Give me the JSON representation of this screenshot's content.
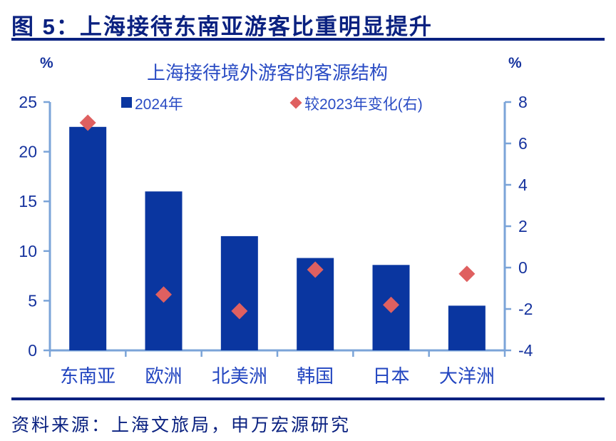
{
  "header": {
    "title": "图 5：上海接待东南亚游客比重明显提升"
  },
  "source": {
    "text": "资料来源：上海文旅局，申万宏源研究"
  },
  "colors": {
    "header_navy": "#0A2180",
    "bar_blue": "#0A36A0",
    "marker_red": "#DF6060",
    "axis_light_blue": "#7BA4D8",
    "tick_label_blue": "#16339E",
    "category_label_blue": "#2245C0",
    "chart_text_blue": "#2A4CC4"
  },
  "chart_data": {
    "type": "bar",
    "title": "上海接待境外游客的客源结构",
    "categories": [
      "东南亚",
      "欧洲",
      "北美洲",
      "韩国",
      "日本",
      "大洋洲"
    ],
    "series": [
      {
        "name": "2024年",
        "type": "bar",
        "axis": "left",
        "marker": "square",
        "color": "#0A36A0",
        "values": [
          22.5,
          16.0,
          11.5,
          9.3,
          8.6,
          4.5
        ]
      },
      {
        "name": "较2023年变化(右)",
        "type": "scatter",
        "axis": "right",
        "marker": "diamond",
        "color": "#DF6060",
        "values": [
          7.0,
          -1.3,
          -2.1,
          -0.1,
          -1.8,
          -0.3
        ]
      }
    ],
    "left_axis": {
      "label": "%",
      "range": [
        0,
        25
      ],
      "ticks": [
        0,
        5,
        10,
        15,
        20,
        25
      ]
    },
    "right_axis": {
      "label": "%",
      "range": [
        -4,
        8
      ],
      "ticks": [
        -4,
        -2,
        0,
        2,
        4,
        6,
        8
      ]
    },
    "legend_position": "top-inside",
    "grid": false
  }
}
